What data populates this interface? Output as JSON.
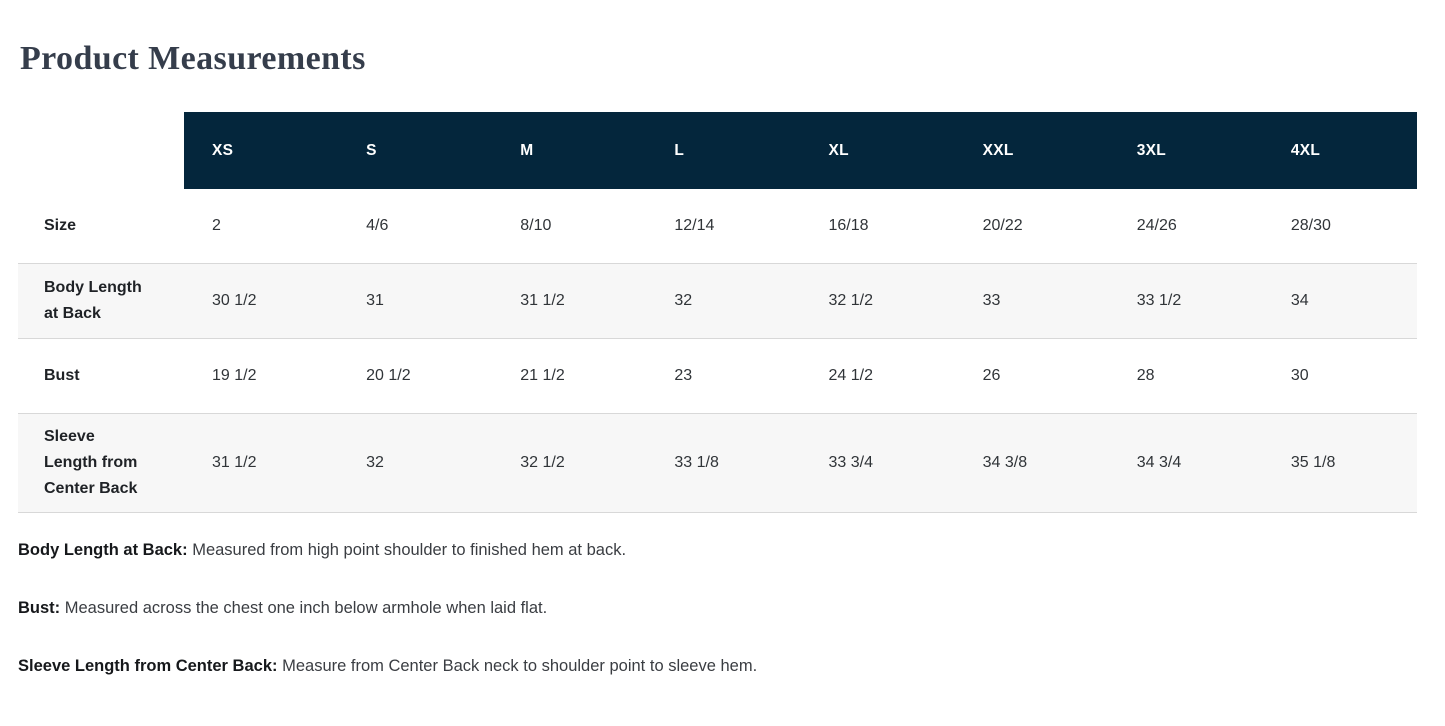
{
  "page": {
    "title": "Product Measurements"
  },
  "table": {
    "header": [
      "XS",
      "S",
      "M",
      "L",
      "XL",
      "XXL",
      "3XL",
      "4XL"
    ],
    "rows": [
      {
        "label": "Size",
        "cells": [
          "2",
          "4/6",
          "8/10",
          "12/14",
          "16/18",
          "20/22",
          "24/26",
          "28/30"
        ]
      },
      {
        "label": "Body Length at Back",
        "cells": [
          "30 1/2",
          "31",
          "31 1/2",
          "32",
          "32 1/2",
          "33",
          "33 1/2",
          "34"
        ]
      },
      {
        "label": "Bust",
        "cells": [
          "19 1/2",
          "20 1/2",
          "21 1/2",
          "23",
          "24 1/2",
          "26",
          "28",
          "30"
        ]
      },
      {
        "label": "Sleeve Length from Center Back",
        "cells": [
          "31 1/2",
          "32",
          "32 1/2",
          "33 1/8",
          "33 3/4",
          "34 3/8",
          "34 3/4",
          "35 1/8"
        ]
      }
    ]
  },
  "notes": [
    {
      "term": "Body Length at Back:",
      "definition": "Measured from high point shoulder to finished hem at back."
    },
    {
      "term": "Bust:",
      "definition": "Measured across the chest one inch below armhole when laid flat."
    },
    {
      "term": "Sleeve Length from Center Back:",
      "definition": "Measure from Center Back neck to shoulder point to sleeve hem."
    }
  ],
  "colors": {
    "header_bg": "#04263c",
    "header_text": "#ffffff",
    "title_text": "#353d4b",
    "cell_text": "#303438",
    "label_text": "#1f2226",
    "stripe_bg": "#f7f7f7",
    "divider": "#d8d8d8"
  }
}
